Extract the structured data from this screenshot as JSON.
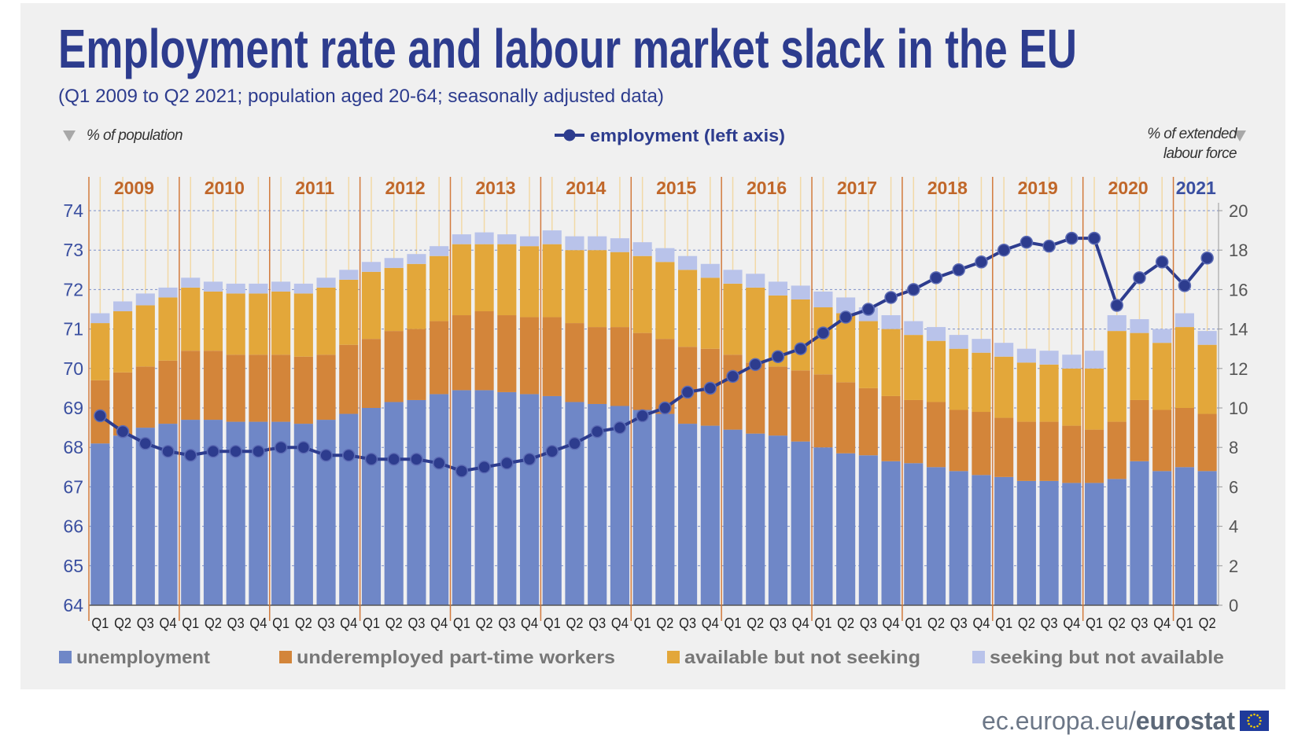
{
  "chart_data": {
    "type": "combo",
    "title": "Employment rate and labour market slack in the EU",
    "subtitle": "(Q1 2009 to Q2 2021; population aged 20-64; seasonally adjusted data)",
    "y_label": "% of population",
    "y2_label": "% of extended labour force",
    "years": [
      {
        "year": "2009",
        "color": "#c0672a",
        "quarters": [
          "Q1",
          "Q2",
          "Q3",
          "Q4"
        ]
      },
      {
        "year": "2010",
        "color": "#c0672a",
        "quarters": [
          "Q1",
          "Q2",
          "Q3",
          "Q4"
        ]
      },
      {
        "year": "2011",
        "color": "#c0672a",
        "quarters": [
          "Q1",
          "Q2",
          "Q3",
          "Q4"
        ]
      },
      {
        "year": "2012",
        "color": "#c0672a",
        "quarters": [
          "Q1",
          "Q2",
          "Q3",
          "Q4"
        ]
      },
      {
        "year": "2013",
        "color": "#c0672a",
        "quarters": [
          "Q1",
          "Q2",
          "Q3",
          "Q4"
        ]
      },
      {
        "year": "2014",
        "color": "#c0672a",
        "quarters": [
          "Q1",
          "Q2",
          "Q3",
          "Q4"
        ]
      },
      {
        "year": "2015",
        "color": "#c0672a",
        "quarters": [
          "Q1",
          "Q2",
          "Q3",
          "Q4"
        ]
      },
      {
        "year": "2016",
        "color": "#c0672a",
        "quarters": [
          "Q1",
          "Q2",
          "Q3",
          "Q4"
        ]
      },
      {
        "year": "2017",
        "color": "#c0672a",
        "quarters": [
          "Q1",
          "Q2",
          "Q3",
          "Q4"
        ]
      },
      {
        "year": "2018",
        "color": "#c0672a",
        "quarters": [
          "Q1",
          "Q2",
          "Q3",
          "Q4"
        ]
      },
      {
        "year": "2019",
        "color": "#c0672a",
        "quarters": [
          "Q1",
          "Q2",
          "Q3",
          "Q4"
        ]
      },
      {
        "year": "2020",
        "color": "#c0672a",
        "quarters": [
          "Q1",
          "Q2",
          "Q3",
          "Q4"
        ]
      },
      {
        "year": "2021",
        "color": "#3a4fa0",
        "quarters": [
          "Q1",
          "Q2"
        ]
      }
    ],
    "series": [
      {
        "name": "unemployment",
        "type": "bar",
        "axis": "y2",
        "color": "#6f87c7",
        "values": [
          8.2,
          8.6,
          9.0,
          9.2,
          9.4,
          9.4,
          9.3,
          9.3,
          9.3,
          9.2,
          9.4,
          9.7,
          10.0,
          10.3,
          10.4,
          10.7,
          10.9,
          10.9,
          10.8,
          10.7,
          10.6,
          10.3,
          10.2,
          10.1,
          9.9,
          9.7,
          9.2,
          9.1,
          8.9,
          8.7,
          8.6,
          8.3,
          8.0,
          7.7,
          7.6,
          7.3,
          7.2,
          7.0,
          6.8,
          6.6,
          6.5,
          6.3,
          6.3,
          6.2,
          6.2,
          6.4,
          7.3,
          6.8,
          7.0,
          6.8
        ]
      },
      {
        "name": "underemployed part-time workers",
        "type": "bar",
        "axis": "y2",
        "color": "#d3853a",
        "values": [
          3.2,
          3.2,
          3.1,
          3.2,
          3.5,
          3.5,
          3.4,
          3.4,
          3.4,
          3.4,
          3.3,
          3.5,
          3.5,
          3.6,
          3.6,
          3.7,
          3.8,
          4.0,
          3.9,
          3.9,
          4.0,
          4.0,
          3.9,
          4.0,
          3.9,
          3.8,
          3.9,
          3.9,
          3.8,
          3.6,
          3.5,
          3.6,
          3.7,
          3.6,
          3.4,
          3.3,
          3.2,
          3.3,
          3.1,
          3.2,
          3.0,
          3.0,
          3.0,
          2.9,
          2.7,
          2.9,
          3.1,
          3.1,
          3.0,
          2.9
        ]
      },
      {
        "name": "available but not seeking",
        "type": "bar",
        "axis": "y2",
        "color": "#e3a73a",
        "values": [
          2.9,
          3.1,
          3.1,
          3.2,
          3.2,
          3.0,
          3.1,
          3.1,
          3.2,
          3.2,
          3.4,
          3.3,
          3.4,
          3.2,
          3.3,
          3.3,
          3.6,
          3.4,
          3.6,
          3.6,
          3.7,
          3.7,
          3.9,
          3.8,
          3.9,
          3.9,
          3.9,
          3.6,
          3.6,
          3.8,
          3.6,
          3.6,
          3.4,
          3.5,
          3.4,
          3.4,
          3.3,
          3.1,
          3.1,
          3.0,
          3.1,
          3.0,
          2.9,
          2.9,
          3.1,
          4.6,
          3.4,
          3.4,
          4.1,
          3.5
        ]
      },
      {
        "name": "seeking but not available",
        "type": "bar",
        "axis": "y2",
        "color": "#b9c3ea",
        "values": [
          0.5,
          0.5,
          0.6,
          0.5,
          0.5,
          0.5,
          0.5,
          0.5,
          0.5,
          0.5,
          0.5,
          0.5,
          0.5,
          0.5,
          0.5,
          0.5,
          0.5,
          0.6,
          0.5,
          0.5,
          0.7,
          0.7,
          0.7,
          0.7,
          0.7,
          0.7,
          0.7,
          0.7,
          0.7,
          0.7,
          0.7,
          0.7,
          0.8,
          0.8,
          0.7,
          0.7,
          0.7,
          0.7,
          0.7,
          0.7,
          0.7,
          0.7,
          0.7,
          0.7,
          0.9,
          0.8,
          0.7,
          0.7,
          0.7,
          0.7
        ]
      },
      {
        "name": "employment (left axis)",
        "type": "line",
        "axis": "y",
        "color": "#2d3c8e",
        "values": [
          68.8,
          68.4,
          68.1,
          67.9,
          67.8,
          67.9,
          67.9,
          67.9,
          68.0,
          68.0,
          67.8,
          67.8,
          67.7,
          67.7,
          67.7,
          67.6,
          67.4,
          67.5,
          67.6,
          67.7,
          67.9,
          68.1,
          68.4,
          68.5,
          68.8,
          69.0,
          69.4,
          69.5,
          69.8,
          70.1,
          70.3,
          70.5,
          70.9,
          71.3,
          71.5,
          71.8,
          72.0,
          72.3,
          72.5,
          72.7,
          73.0,
          73.2,
          73.1,
          73.3,
          73.3,
          71.6,
          72.3,
          72.7,
          72.1,
          72.8
        ]
      }
    ],
    "ylim": [
      64,
      74
    ],
    "yticks": [
      64,
      65,
      66,
      67,
      68,
      69,
      70,
      71,
      72,
      73,
      74
    ],
    "y2lim": [
      0,
      20
    ],
    "y2ticks": [
      0,
      2,
      4,
      6,
      8,
      10,
      12,
      14,
      16,
      18,
      20
    ],
    "grid": true,
    "footer": {
      "site": "ec.europa.eu/",
      "brand": "eurostat"
    }
  }
}
